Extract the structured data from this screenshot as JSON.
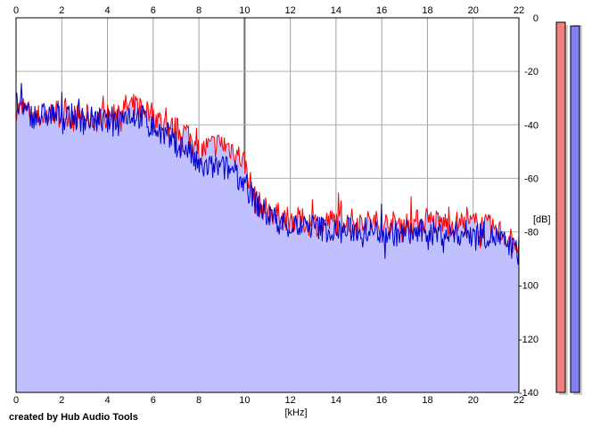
{
  "credit": "created by Hub Audio Tools",
  "chart_data": {
    "type": "area",
    "xlabel": "[kHz]",
    "ylabel": "[dB]",
    "xlim": [
      0,
      22
    ],
    "ylim": [
      -140,
      0
    ],
    "x_ticks": [
      "0",
      "2",
      "4",
      "6",
      "8",
      "10",
      "12",
      "14",
      "16",
      "18",
      "20",
      "22"
    ],
    "y_ticks": [
      "0",
      "-20",
      "-40",
      "-60",
      "-80",
      "-100",
      "-120",
      "-140"
    ],
    "grid": true,
    "legend": "none",
    "series": [
      {
        "color": "#ff0000",
        "x": [
          0,
          0.5,
          1,
          1.5,
          2,
          2.5,
          3,
          3.5,
          4,
          4.5,
          5,
          5.5,
          6,
          6.5,
          7,
          7.5,
          8,
          8.5,
          9,
          9.5,
          10,
          10.5,
          11,
          11.5,
          12,
          13,
          14,
          15,
          16,
          17,
          18,
          19,
          20,
          21,
          22
        ],
        "values": [
          -34,
          -35,
          -37,
          -36,
          -35,
          -37,
          -37,
          -38,
          -37,
          -34,
          -33,
          -33,
          -36,
          -40,
          -42,
          -43,
          -50,
          -48,
          -47,
          -49,
          -54,
          -69,
          -72,
          -74,
          -75,
          -77,
          -76,
          -76,
          -77,
          -77,
          -76,
          -77,
          -77,
          -79,
          -85
        ]
      },
      {
        "color": "#0000cc",
        "x": [
          0,
          0.5,
          1,
          1.5,
          2,
          2.5,
          3,
          3.5,
          4,
          4.5,
          5,
          5.5,
          6,
          6.5,
          7,
          7.5,
          8,
          8.5,
          9,
          9.5,
          10,
          10.5,
          11,
          11.5,
          12,
          13,
          14,
          15,
          16,
          17,
          18,
          19,
          20,
          21,
          22
        ],
        "values": [
          -32,
          -36,
          -37,
          -36,
          -37,
          -37,
          -38,
          -38,
          -39,
          -37,
          -36,
          -37,
          -41,
          -44,
          -47,
          -49,
          -56,
          -56,
          -56,
          -57,
          -62,
          -69,
          -74,
          -76,
          -78,
          -78,
          -80,
          -79,
          -80,
          -81,
          -80,
          -81,
          -80,
          -82,
          -88
        ]
      }
    ],
    "level_meters": [
      {
        "color": "#f08080",
        "level": 1.0
      },
      {
        "color": "#8080f0",
        "level": 0.99
      }
    ],
    "fill_color": "#c0c0ff"
  }
}
